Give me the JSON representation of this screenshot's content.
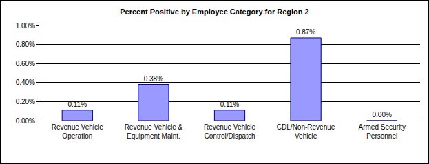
{
  "chart_data": {
    "type": "bar",
    "title": "Percent Positive by Employee Category for Region 2",
    "categories": [
      "Revenue Vehicle Operation",
      "Revenue Vehicle & Equipment Maint.",
      "Revenue Vehicle Control/Dispatch",
      "CDL/Non-Revenue Vehicle",
      "Armed Security Personnel"
    ],
    "values": [
      0.11,
      0.38,
      0.11,
      0.87,
      0.0
    ],
    "value_labels": [
      "0.11%",
      "0.38%",
      "0.11%",
      "0.87%",
      "0.00%"
    ],
    "data_labels": true,
    "color": "#9999ff",
    "ylim": [
      0,
      1
    ],
    "yticks": [
      {
        "value": 0,
        "label": "0.00%"
      },
      {
        "value": 0.2,
        "label": "0.20%"
      },
      {
        "value": 0.4,
        "label": "0.40%"
      },
      {
        "value": 0.6,
        "label": "0.60%"
      },
      {
        "value": 0.8,
        "label": "0.80%"
      },
      {
        "value": 1,
        "label": "1.00%"
      }
    ],
    "grid": true
  }
}
